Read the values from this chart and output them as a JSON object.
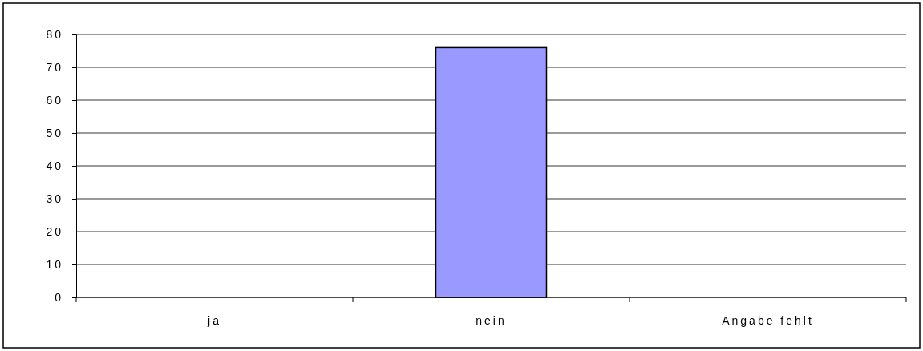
{
  "chart_data": {
    "type": "bar",
    "categories": [
      "ja",
      "nein",
      "Angabe fehlt"
    ],
    "values": [
      0,
      76,
      0
    ],
    "color": "#9999ff",
    "ylim": [
      0,
      80
    ],
    "yticks": [
      0,
      10,
      20,
      30,
      40,
      50,
      60,
      70,
      80
    ],
    "grid": "y"
  }
}
